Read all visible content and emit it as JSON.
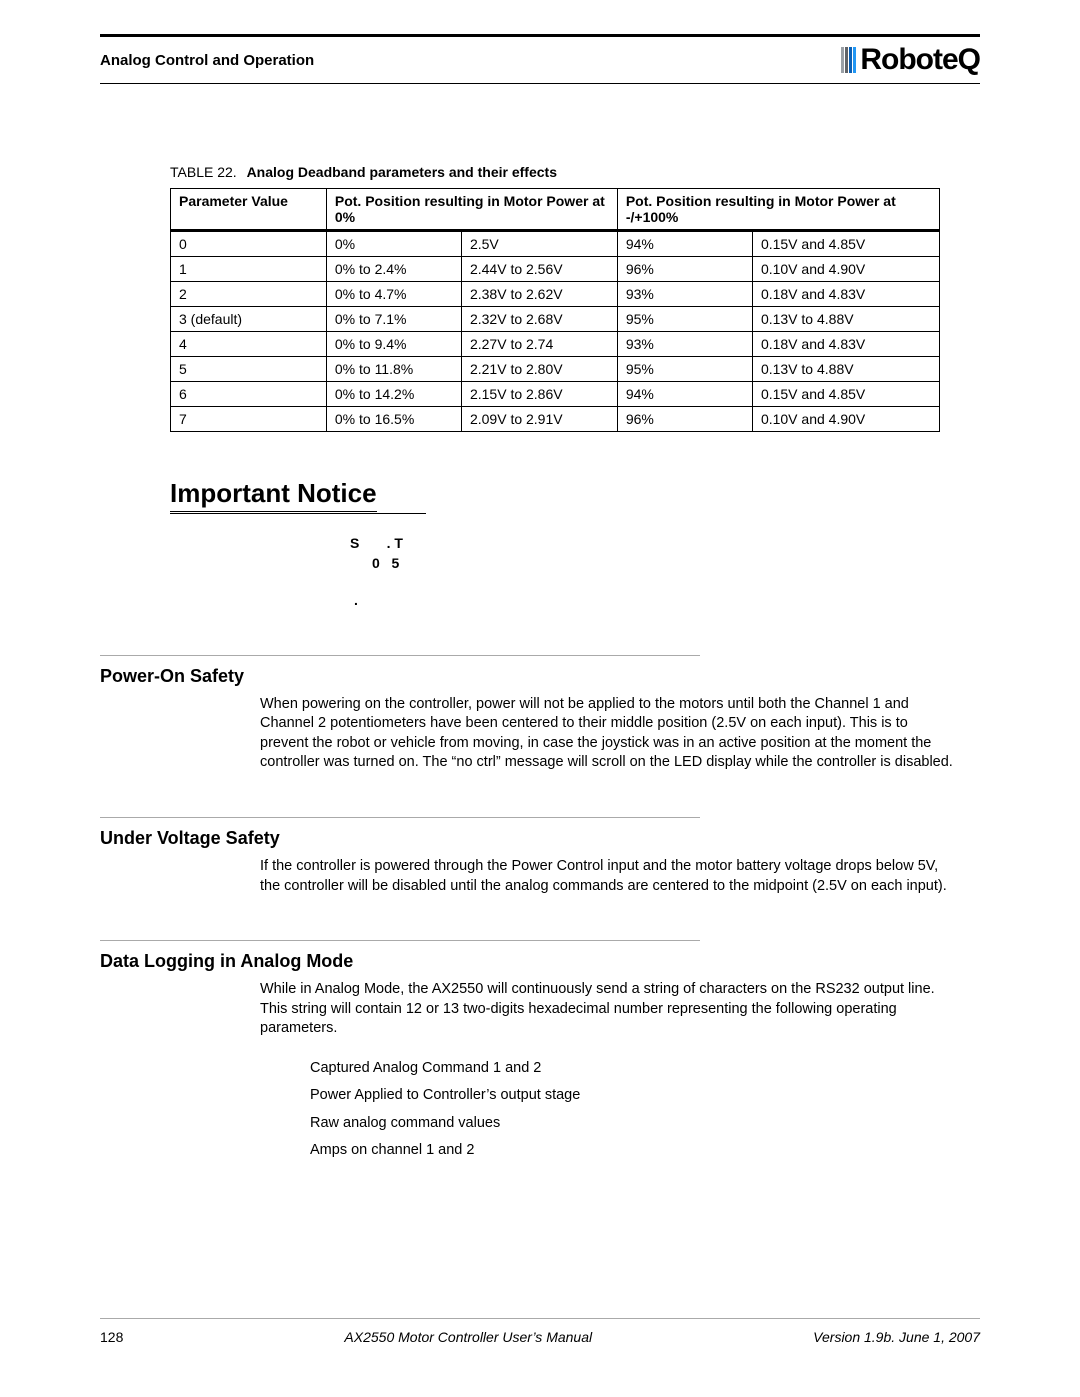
{
  "header": {
    "section_title": "Analog Control and Operation",
    "logo_text": "RoboteQ",
    "logo_bar_colors": [
      "#9aa0a6",
      "#5f6368",
      "#0a5fb4",
      "#2196f3"
    ]
  },
  "table": {
    "caption_label": "TABLE 22.",
    "caption_title": "Analog Deadband parameters and their effects",
    "columns": [
      "Parameter Value",
      "Pot. Position resulting in\nMotor Power at 0%",
      "",
      "Pot. Position resulting in\nMotor Power at -/+100%",
      ""
    ],
    "col_widths": [
      "150px",
      "130px",
      "150px",
      "130px",
      "180px"
    ],
    "rows": [
      [
        "0",
        "0%",
        "2.5V",
        "94%",
        "0.15V and 4.85V"
      ],
      [
        "1",
        "0% to 2.4%",
        "2.44V to 2.56V",
        "96%",
        "0.10V and 4.90V"
      ],
      [
        "2",
        "0% to 4.7%",
        "2.38V to 2.62V",
        "93%",
        "0.18V and 4.83V"
      ],
      [
        "3 (default)",
        "0% to 7.1%",
        "2.32V to 2.68V",
        "95%",
        "0.13V to 4.88V"
      ],
      [
        "4",
        "0% to 9.4%",
        "2.27V to 2.74",
        "93%",
        "0.18V and 4.83V"
      ],
      [
        "5",
        "0% to 11.8%",
        "2.21V to 2.80V",
        "95%",
        "0.13V to 4.88V"
      ],
      [
        "6",
        "0% to 14.2%",
        "2.15V to 2.86V",
        "94%",
        "0.15V and 4.85V"
      ],
      [
        "7",
        "0% to 16.5%",
        "2.09V to 2.91V",
        "96%",
        "0.10V and 4.90V"
      ]
    ]
  },
  "notice": {
    "title": "Important Notice",
    "line1": "S       . T",
    "line2": "0   5",
    "line3": "."
  },
  "sections": {
    "power_on": {
      "title": "Power-On Safety",
      "body": "When powering on the controller, power will not be applied to the motors until both the Channel 1 and Channel 2 potentiometers have been centered to their middle position (2.5V on each input). This is to prevent the robot or vehicle from moving, in case the joystick was in an active position at the moment the controller was turned on. The “no ctrl” message will scroll on the LED display while the controller is disabled."
    },
    "under_voltage": {
      "title": "Under Voltage Safety",
      "body": "If the controller is powered through the Power Control input and the motor battery voltage drops below 5V, the controller will be disabled until the analog commands are centered to the midpoint (2.5V on each input)."
    },
    "data_logging": {
      "title": "Data Logging in Analog Mode",
      "body": "While in Analog Mode, the AX2550 will continuously send a string of characters on the RS232 output line. This string will contain 12 or 13 two-digits hexadecimal number representing the following operating parameters.",
      "bullets": [
        "Captured Analog Command 1 and 2",
        "Power Applied to Controller’s output stage",
        "Raw analog command values",
        "Amps on channel 1 and 2"
      ]
    }
  },
  "footer": {
    "page": "128",
    "center": "AX2550 Motor Controller User’s Manual",
    "right": "Version 1.9b. June 1, 2007"
  }
}
